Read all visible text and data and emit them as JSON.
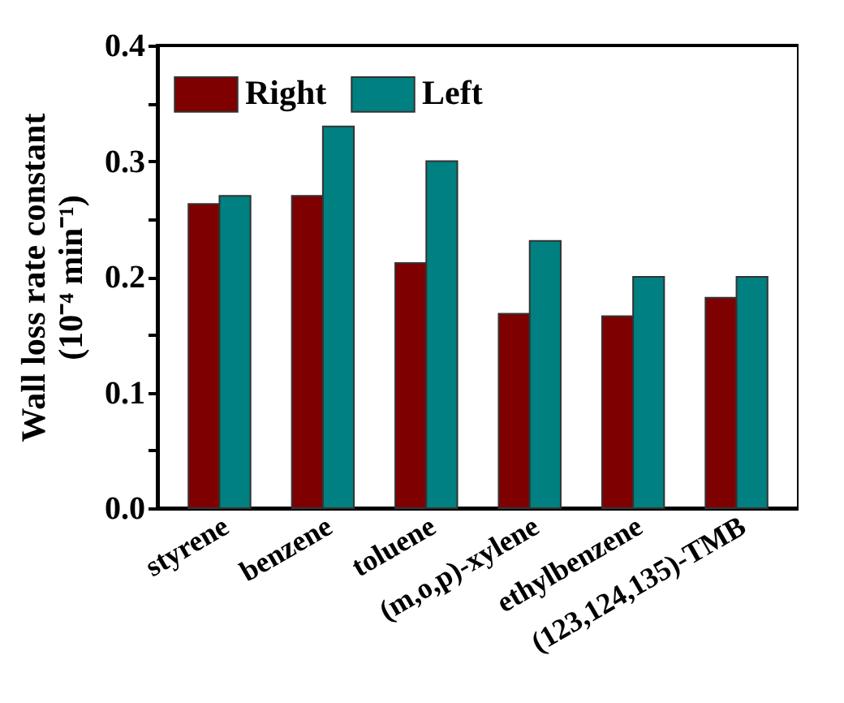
{
  "chart_data": {
    "type": "bar",
    "ylabel": "Wall loss rate constant\n(10⁻⁴ min⁻¹)",
    "categories": [
      "styrene",
      "benzene",
      "toluene",
      "(m,o,p)-xylene",
      "ethylbenzene",
      "(123,124,135)-TMB"
    ],
    "series": [
      {
        "name": "Right",
        "color": "#7f0000",
        "values": [
          0.263,
          0.27,
          0.212,
          0.168,
          0.166,
          0.182
        ]
      },
      {
        "name": "Left",
        "color": "#008080",
        "values": [
          0.27,
          0.33,
          0.3,
          0.231,
          0.2,
          0.2
        ]
      }
    ],
    "ylim": [
      0,
      0.4
    ],
    "yticks": [
      {
        "value": 0,
        "label": "0.0"
      },
      {
        "value": 0.05,
        "label": null
      },
      {
        "value": 0.1,
        "label": "0.1"
      },
      {
        "value": 0.15,
        "label": null
      },
      {
        "value": 0.2,
        "label": "0.2"
      },
      {
        "value": 0.25,
        "label": null
      },
      {
        "value": 0.3,
        "label": "0.3"
      },
      {
        "value": 0.35,
        "label": null
      },
      {
        "value": 0.4,
        "label": "0.4"
      }
    ],
    "legend": "top left",
    "grid": false
  }
}
